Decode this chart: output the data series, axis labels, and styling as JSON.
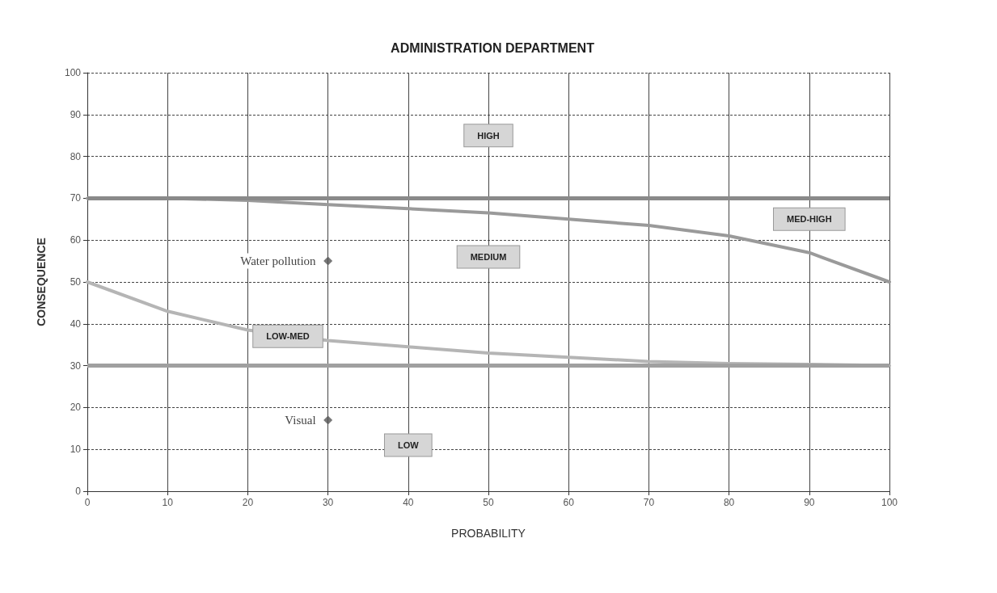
{
  "chart_data": {
    "type": "scatter",
    "title": "ADMINISTRATION DEPARTMENT",
    "xlabel": "PROBABILITY",
    "ylabel": "CONSEQUENCE",
    "series": [
      {
        "color": "#555555",
        "marker": "diamond",
        "x": [
          30,
          30
        ],
        "values": [
          55,
          17
        ]
      },
      {
        "type": "line",
        "color": "#9a9a9a",
        "marker": "none",
        "x": [
          0,
          10,
          20,
          30,
          40,
          50,
          60,
          70,
          80,
          90,
          100
        ],
        "values": [
          70,
          70,
          69.5,
          68.5,
          67.5,
          66.5,
          65,
          63.5,
          61,
          57,
          50
        ]
      },
      {
        "type": "line",
        "color": "#b5b5b5",
        "marker": "none",
        "x": [
          0,
          10,
          20,
          30,
          40,
          50,
          60,
          70,
          80,
          90,
          100
        ],
        "values": [
          50,
          43,
          38.5,
          36,
          34.5,
          33,
          32,
          31,
          30.5,
          30.3,
          30
        ]
      }
    ],
    "ref_lines": [
      {
        "axis": "y",
        "value": 70,
        "color": "#8a8a8a"
      },
      {
        "axis": "y",
        "value": 30,
        "color": "#a0a0a0"
      }
    ],
    "annotations": [
      {
        "text": "Water pollution",
        "x": 30,
        "y": 55
      },
      {
        "text": "Visual",
        "x": 30,
        "y": 17
      },
      "HIGH",
      "MED-HIGH",
      "MEDIUM",
      "LOW-MED",
      "LOW"
    ],
    "xlim": [
      0,
      100
    ],
    "xticks": [
      0,
      10,
      20,
      30,
      40,
      50,
      60,
      70,
      80,
      90,
      100
    ],
    "ylim": [
      0,
      100
    ],
    "yticks": [
      0,
      10,
      20,
      30,
      40,
      50,
      60,
      70,
      80,
      90,
      100
    ],
    "grid": true
  }
}
